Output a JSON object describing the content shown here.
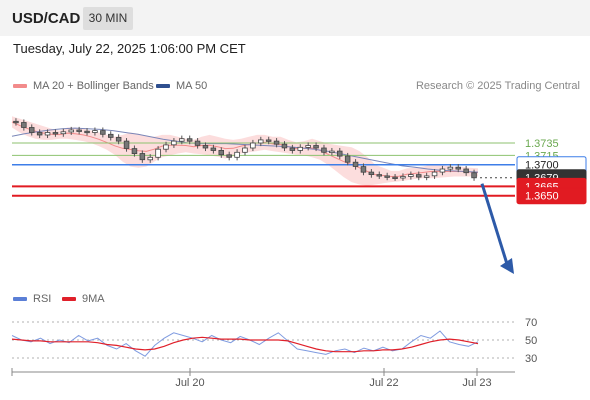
{
  "header": {
    "symbol": "USD/CAD",
    "timeframe": "30 MIN"
  },
  "datetime": "Tuesday, July 22, 2025 1:06:00 PM CET",
  "credit": "Research © 2025 Trading Central",
  "legend_main": [
    {
      "label": "MA 20 + Bollinger Bands",
      "color": "#f28b8b"
    },
    {
      "label": "MA 50",
      "color": "#2f4f8f"
    }
  ],
  "legend_rsi": [
    {
      "label": "RSI",
      "color": "#5b7fd6"
    },
    {
      "label": "9MA",
      "color": "#e0202a"
    }
  ],
  "levels": [
    {
      "value": 1.3735,
      "label": "1.3735",
      "kind": "resistance-green"
    },
    {
      "value": 1.3715,
      "label": "1.3715",
      "kind": "resistance-green"
    },
    {
      "value": 1.37,
      "label": "1.3700",
      "kind": "pivot-blue"
    },
    {
      "value": 1.3679,
      "label": "1.3679",
      "kind": "last-price"
    },
    {
      "value": 1.3665,
      "label": "1.3665",
      "kind": "support-red"
    },
    {
      "value": 1.365,
      "label": "1.3650",
      "kind": "support-red"
    }
  ],
  "rsi_ticks": [
    "70",
    "50",
    "30"
  ],
  "x_labels": [
    "Jul 20",
    "Jul 22",
    "Jul 23"
  ],
  "colors": {
    "green": "#8dc26f",
    "blue": "#3d7ee8",
    "red": "#e11b22",
    "price_tag": "#333333",
    "band": "#fcd9d9",
    "ma50": "#7a86b8",
    "arrow": "#2d5aa8"
  },
  "chart_data": {
    "type": "candlestick",
    "price_path": [
      1.377,
      1.3768,
      1.376,
      1.3752,
      1.3748,
      1.3752,
      1.375,
      1.3753,
      1.3756,
      1.3754,
      1.3752,
      1.3755,
      1.3749,
      1.3744,
      1.3738,
      1.3726,
      1.3718,
      1.3708,
      1.3712,
      1.3725,
      1.3732,
      1.3738,
      1.3742,
      1.3738,
      1.3731,
      1.3727,
      1.3723,
      1.3716,
      1.3712,
      1.372,
      1.3727,
      1.3735,
      1.374,
      1.3738,
      1.3733,
      1.3727,
      1.3723,
      1.3728,
      1.3731,
      1.3727,
      1.372,
      1.3722,
      1.3714,
      1.3704,
      1.3697,
      1.3688,
      1.3684,
      1.3682,
      1.368,
      1.3679,
      1.3681,
      1.3684,
      1.368,
      1.3682,
      1.3688,
      1.3693,
      1.3696,
      1.3693,
      1.3687,
      1.3679
    ],
    "ma20_band_upper": [
      1.3778,
      1.3774,
      1.377,
      1.3766,
      1.3762,
      1.3758,
      1.3755,
      1.376,
      1.376,
      1.3758,
      1.3755,
      1.3752,
      1.3748,
      1.3745,
      1.3748,
      1.3752,
      1.375,
      1.3746,
      1.3745,
      1.3748,
      1.3748,
      1.3745,
      1.3742,
      1.374,
      1.3745,
      1.3748,
      1.3745,
      1.3742,
      1.374,
      1.3742,
      1.3745,
      1.3748,
      1.3748,
      1.3745,
      1.3745,
      1.374,
      1.3736,
      1.3738,
      1.3742,
      1.3738,
      1.3734,
      1.3732,
      1.373,
      1.3728,
      1.3722,
      1.3712,
      1.37,
      1.3695,
      1.369,
      1.369,
      1.3694,
      1.3695,
      1.3697,
      1.37,
      1.37,
      1.3698,
      1.3697,
      1.3697,
      1.3695,
      1.3694
    ],
    "ma20_band_lower": [
      1.376,
      1.3752,
      1.3746,
      1.3742,
      1.374,
      1.374,
      1.3742,
      1.3742,
      1.374,
      1.3738,
      1.3735,
      1.373,
      1.3724,
      1.3716,
      1.3705,
      1.3697,
      1.3695,
      1.3697,
      1.3705,
      1.3712,
      1.3715,
      1.3718,
      1.372,
      1.3718,
      1.3717,
      1.3715,
      1.3713,
      1.371,
      1.3713,
      1.3718,
      1.372,
      1.3722,
      1.3724,
      1.3722,
      1.372,
      1.3718,
      1.3716,
      1.3715,
      1.3712,
      1.3708,
      1.37,
      1.369,
      1.368,
      1.3672,
      1.3668,
      1.3666,
      1.3668,
      1.367,
      1.3672,
      1.3673,
      1.3675,
      1.3677,
      1.3678,
      1.3678,
      1.3679,
      1.368,
      1.3681,
      1.3681,
      1.3681,
      1.3681
    ],
    "ma50": [
      1.3746,
      1.375,
      1.3753,
      1.3756,
      1.3758,
      1.3759,
      1.3758,
      1.3757,
      1.3755,
      1.3752,
      1.3749,
      1.3745,
      1.3741,
      1.3738,
      1.3735,
      1.3734,
      1.3734,
      1.3734,
      1.3733,
      1.3732,
      1.3731,
      1.373,
      1.3729,
      1.3727,
      1.3725,
      1.3722,
      1.3718,
      1.3714,
      1.371,
      1.3706,
      1.3702,
      1.3698,
      1.3696,
      1.3693,
      1.3691,
      1.369,
      1.3689,
      1.3688
    ],
    "rsi": [
      55,
      50,
      48,
      52,
      46,
      50,
      47,
      55,
      49,
      52,
      44,
      40,
      46,
      38,
      32,
      44,
      52,
      58,
      55,
      52,
      48,
      55,
      50,
      47,
      54,
      50,
      45,
      52,
      58,
      49,
      40,
      38,
      36,
      34,
      38,
      40,
      36,
      41,
      38,
      42,
      38,
      40,
      48,
      55,
      52,
      60,
      48,
      45,
      43,
      48
    ],
    "rsi_9ma": [
      51,
      50,
      49,
      49,
      48,
      48,
      48,
      48,
      48,
      47,
      45,
      44,
      42,
      40,
      39,
      40,
      43,
      47,
      50,
      52,
      53,
      52,
      51,
      51,
      51,
      50,
      50,
      50,
      50,
      49,
      46,
      43,
      40,
      38,
      37,
      37,
      37,
      38,
      38,
      39,
      39,
      40,
      42,
      45,
      48,
      50,
      51,
      50,
      48,
      46
    ],
    "levels": [
      1.3735,
      1.3715,
      1.37,
      1.3679,
      1.3665,
      1.365
    ],
    "rsi_levels": [
      70,
      50,
      30
    ],
    "x_labels": [
      "Jul 20",
      "Jul 22",
      "Jul 23"
    ]
  }
}
